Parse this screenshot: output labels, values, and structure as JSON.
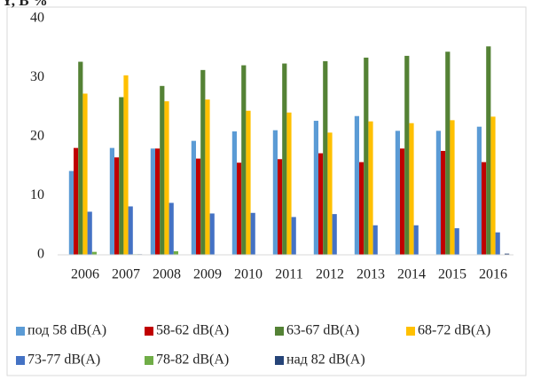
{
  "chart_data": {
    "type": "bar",
    "y_label": "Y, B %",
    "categories": [
      "2006",
      "2007",
      "2008",
      "2009",
      "2010",
      "2011",
      "2012",
      "2013",
      "2014",
      "2015",
      "2016"
    ],
    "series": [
      {
        "name": "под 58 dB(A)",
        "color": "#5b9bd5",
        "values": [
          14.2,
          18.1,
          18.0,
          19.3,
          20.9,
          21.1,
          22.7,
          23.5,
          21.0,
          21.0,
          21.7
        ]
      },
      {
        "name": "58-62 dB(A)",
        "color": "#c00000",
        "values": [
          18.1,
          16.5,
          18.0,
          16.3,
          15.6,
          16.2,
          17.2,
          15.7,
          18.0,
          17.6,
          15.7
        ]
      },
      {
        "name": "63-67 dB(A)",
        "color": "#548235",
        "values": [
          32.7,
          26.7,
          28.6,
          31.3,
          32.1,
          32.4,
          32.8,
          33.4,
          33.7,
          34.4,
          35.3
        ]
      },
      {
        "name": "68-72 dB(A)",
        "color": "#ffc000",
        "values": [
          27.3,
          30.4,
          26.0,
          26.3,
          24.4,
          24.1,
          20.7,
          22.6,
          22.3,
          22.8,
          23.4
        ]
      },
      {
        "name": "73-77 dB(A)",
        "color": "#4472c4",
        "values": [
          7.3,
          8.2,
          8.8,
          7.0,
          7.1,
          6.4,
          6.9,
          5.0,
          5.0,
          4.5,
          3.8
        ]
      },
      {
        "name": "78-82 dB(A)",
        "color": "#70ad47",
        "values": [
          0.5,
          0.1,
          0.6,
          0,
          0,
          0,
          0,
          0,
          0,
          0,
          0
        ]
      },
      {
        "name": "над 82 dB(A)",
        "color": "#264478",
        "values": [
          0,
          0.1,
          0,
          0,
          0,
          0,
          0,
          0,
          0,
          0,
          0.2
        ]
      }
    ],
    "ylim": [
      0,
      40
    ],
    "yticks": [
      0,
      10,
      20,
      30,
      40
    ],
    "grid": false,
    "legend": "bottom"
  }
}
